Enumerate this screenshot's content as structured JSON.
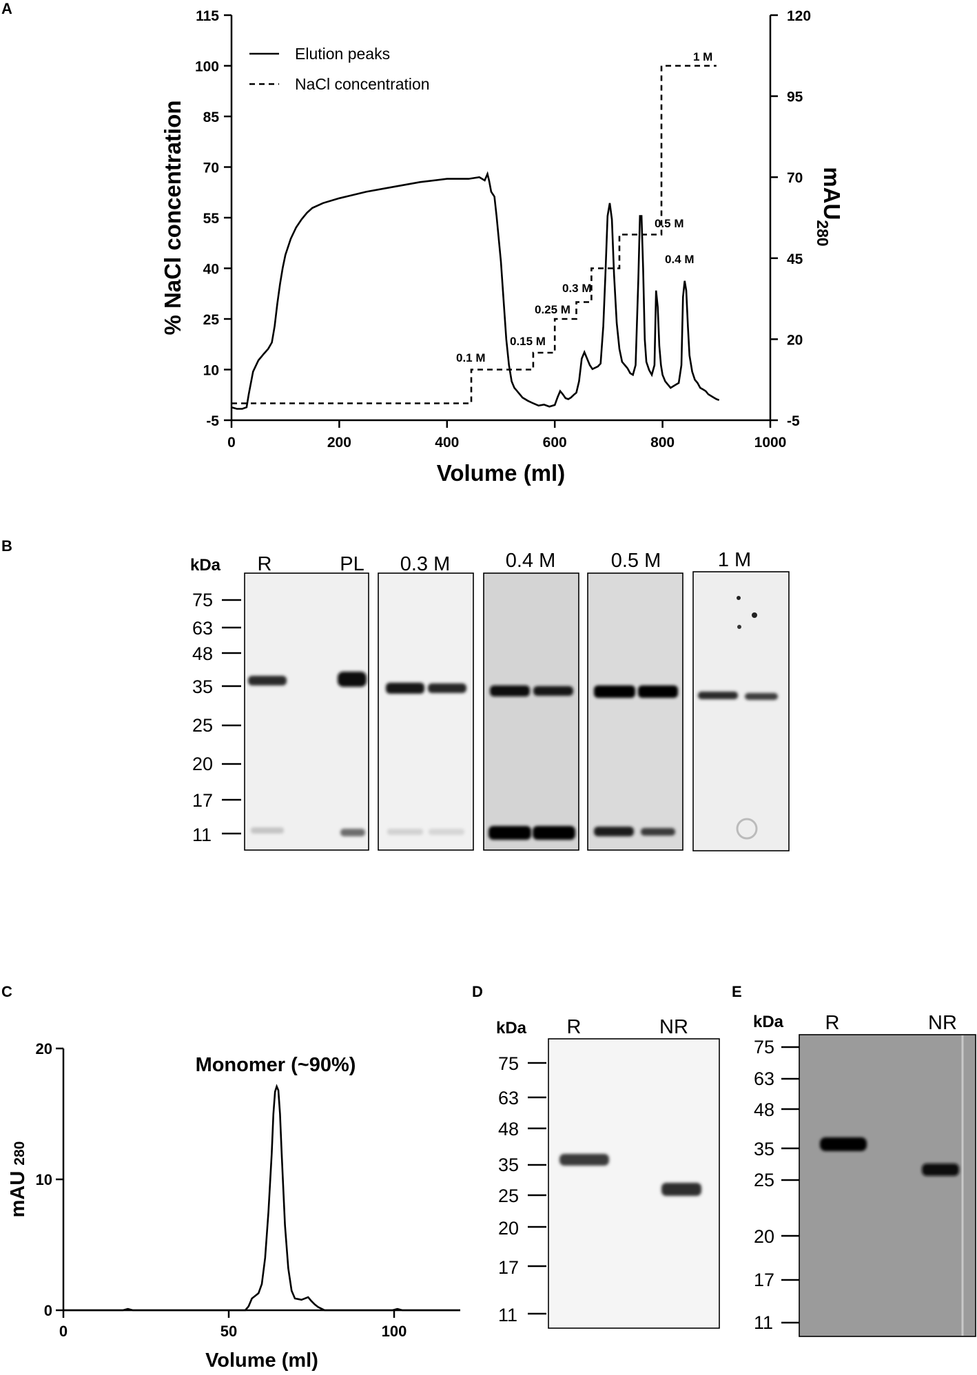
{
  "panels": {
    "A": "A",
    "B": "B",
    "C": "C",
    "D": "D",
    "E": "E"
  },
  "chart_data": [
    {
      "id": "A",
      "type": "line",
      "xlabel": "Volume (ml)",
      "ylabel": "% NaCl concentration",
      "y2label_main": "mAU",
      "y2label_sub": "280",
      "xlim": [
        0,
        1000
      ],
      "ylim": [
        -5,
        115
      ],
      "y2lim": [
        -5,
        120
      ],
      "x_ticks": [
        0,
        200,
        400,
        600,
        800,
        1000
      ],
      "y_ticks": [
        -5,
        10,
        25,
        40,
        55,
        70,
        85,
        100,
        115
      ],
      "y2_ticks": [
        -5,
        20,
        45,
        70,
        95,
        120
      ],
      "legend_position": "top-left",
      "series": [
        {
          "name": "Elution peaks",
          "style": "solid",
          "axis": "right",
          "x": [
            0,
            10,
            20,
            28,
            32,
            40,
            50,
            60,
            68,
            75,
            80,
            85,
            90,
            95,
            100,
            110,
            120,
            130,
            140,
            150,
            170,
            200,
            250,
            300,
            350,
            400,
            440,
            460,
            470,
            475,
            478,
            482,
            488,
            492,
            500,
            505,
            510,
            515,
            520,
            525,
            530,
            540,
            550,
            560,
            570,
            580,
            590,
            600,
            605,
            610,
            615,
            620,
            625,
            630,
            635,
            640,
            645,
            650,
            655,
            660,
            665,
            670,
            675,
            680,
            685,
            690,
            694,
            698,
            702,
            706,
            710,
            715,
            720,
            725,
            730,
            735,
            740,
            745,
            750,
            755,
            758,
            761,
            764,
            767,
            770,
            775,
            780,
            785,
            788,
            791,
            794,
            797,
            800,
            805,
            810,
            815,
            820,
            825,
            830,
            835,
            838,
            841,
            844,
            847,
            850,
            855,
            860,
            865,
            870,
            875,
            880,
            885,
            890,
            895,
            900,
            905
          ],
          "y": [
            -1,
            -1.5,
            -1.5,
            -1,
            3,
            10,
            13.5,
            15.5,
            17,
            19,
            24,
            31,
            37,
            42,
            46,
            51,
            54.5,
            57,
            59,
            60.5,
            62,
            63.5,
            65.5,
            67,
            68.5,
            69.5,
            69.5,
            70,
            69,
            71,
            69,
            65.5,
            64,
            58,
            44,
            32,
            20,
            12,
            7,
            5,
            4,
            2,
            1,
            0.2,
            -0.5,
            -0.2,
            -0.8,
            -0.3,
            2,
            4,
            3,
            1.8,
            1.5,
            2,
            2.8,
            3.5,
            7,
            14,
            16,
            14,
            12,
            10.8,
            11.2,
            11.6,
            12.5,
            24,
            40,
            58,
            62,
            57,
            40,
            25,
            17,
            13,
            12,
            11,
            9.5,
            9,
            12,
            38,
            58,
            58,
            42,
            20,
            13,
            10.5,
            9,
            12,
            35,
            30,
            18,
            12,
            9,
            7,
            6,
            5,
            5.5,
            6,
            6.5,
            12,
            33,
            38,
            35,
            24,
            15,
            10,
            7.5,
            6.5,
            5,
            4.5,
            4,
            3,
            2.5,
            2,
            1.5,
            1.2
          ]
        },
        {
          "name": "NaCl concentration",
          "style": "dashed",
          "axis": "left",
          "x": [
            0,
            445,
            445,
            560,
            560,
            600,
            600,
            640,
            640,
            668,
            668,
            720,
            720,
            798,
            798,
            865,
            865,
            900
          ],
          "y": [
            0,
            0,
            10,
            10,
            15,
            15,
            25,
            25,
            30,
            30,
            40,
            40,
            50,
            50,
            100,
            100,
            0,
            0
          ]
        }
      ],
      "annotations": [
        "0.1 M",
        "0.15 M",
        "0.25 M",
        "0.3 M",
        "0.4 M",
        "0.5 M",
        "1 M"
      ]
    },
    {
      "id": "C",
      "type": "line",
      "title": "Monomer (~90%)",
      "xlabel": "Volume  (ml)",
      "ylabel_main": "mAU",
      "ylabel_sub": "280",
      "xlim": [
        0,
        120
      ],
      "ylim": [
        0,
        20
      ],
      "x_ticks": [
        0,
        50,
        100
      ],
      "y_ticks": [
        0,
        10,
        20
      ],
      "series": [
        {
          "style": "solid",
          "x": [
            0,
            18,
            19.5,
            21,
            55,
            56,
            57,
            58,
            59,
            60,
            61,
            62,
            63,
            63.5,
            64,
            64.5,
            65,
            65.5,
            66,
            67,
            68,
            69,
            70,
            71,
            72,
            73,
            74,
            75,
            76,
            77,
            78,
            79,
            90,
            99.5,
            101,
            102.5,
            120
          ],
          "y": [
            0,
            0,
            0.1,
            0,
            0,
            0.3,
            0.9,
            1.1,
            1.3,
            2,
            4,
            7.5,
            12,
            15,
            16.7,
            17.1,
            16.8,
            15,
            12,
            6.5,
            3.2,
            1.5,
            0.9,
            0.85,
            0.8,
            0.9,
            1,
            0.7,
            0.45,
            0.25,
            0.12,
            0,
            0,
            0,
            0.1,
            0,
            0
          ]
        }
      ]
    }
  ],
  "gel_b": {
    "unit": "kDa",
    "markers": [
      "75",
      "63",
      "48",
      "35",
      "25",
      "20",
      "17",
      "11"
    ],
    "lanes": [
      "R",
      "PL",
      "0.3 M",
      "0.4 M",
      "0.5 M",
      "1 M"
    ]
  },
  "gel_d": {
    "unit": "kDa",
    "markers": [
      "75",
      "63",
      "48",
      "35",
      "25",
      "20",
      "17",
      "11"
    ],
    "lanes": [
      "R",
      "NR"
    ]
  },
  "gel_e": {
    "unit": "kDa",
    "markers": [
      "75",
      "63",
      "48",
      "35",
      "25",
      "20",
      "17",
      "11"
    ],
    "lanes": [
      "R",
      "NR"
    ]
  }
}
